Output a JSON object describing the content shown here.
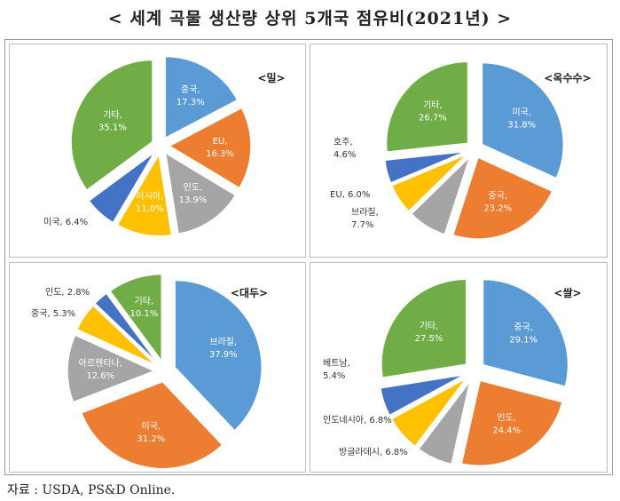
{
  "title": "< 세계 곡물 생산량 상위 5개국 점유비(2021년) >",
  "source": "자료 : USDA, PS&D Online.",
  "colors": {
    "blue": "#5b9bd5",
    "orange": "#ed7d31",
    "gray": "#a5a5a5",
    "yellow": "#ffc000",
    "darkblue": "#4472c4",
    "green": "#70ad47"
  },
  "chart_data": [
    {
      "type": "pie",
      "title": "<밀>",
      "slices": [
        {
          "name": "중국",
          "value": 17.3,
          "label": "17.3%",
          "color": "blue"
        },
        {
          "name": "EU",
          "value": 16.3,
          "label": "16.3%",
          "color": "orange"
        },
        {
          "name": "인도",
          "value": 13.9,
          "label": "13.9%",
          "color": "gray"
        },
        {
          "name": "러시아",
          "value": 11.0,
          "label": "11.0%",
          "color": "yellow"
        },
        {
          "name": "미국",
          "value": 6.4,
          "label": "6.4%",
          "color": "darkblue"
        },
        {
          "name": "기타",
          "value": 35.1,
          "label": "35.1%",
          "color": "green"
        }
      ]
    },
    {
      "type": "pie",
      "title": "<옥수수>",
      "slices": [
        {
          "name": "미국",
          "value": 31.8,
          "label": "31.8%",
          "color": "blue"
        },
        {
          "name": "중국",
          "value": 23.2,
          "label": "23.2%",
          "color": "orange"
        },
        {
          "name": "브라질",
          "value": 7.7,
          "label": "7.7%",
          "color": "gray"
        },
        {
          "name": "EU",
          "value": 6.0,
          "label": "6.0%",
          "color": "yellow"
        },
        {
          "name": "호주",
          "value": 4.6,
          "label": "4.6%",
          "color": "darkblue"
        },
        {
          "name": "기타",
          "value": 26.7,
          "label": "26.7%",
          "color": "green"
        }
      ]
    },
    {
      "type": "pie",
      "title": "<대두>",
      "slices": [
        {
          "name": "브라질",
          "value": 37.9,
          "label": "37.9%",
          "color": "blue"
        },
        {
          "name": "미국",
          "value": 31.2,
          "label": "31.2%",
          "color": "orange"
        },
        {
          "name": "아르헨티나",
          "value": 12.6,
          "label": "12.6%",
          "color": "gray"
        },
        {
          "name": "중국",
          "value": 5.3,
          "label": "5.3%",
          "color": "yellow"
        },
        {
          "name": "인도",
          "value": 2.8,
          "label": "2.8%",
          "color": "darkblue"
        },
        {
          "name": "기타",
          "value": 10.1,
          "label": "10.1%",
          "color": "green"
        }
      ]
    },
    {
      "type": "pie",
      "title": "<쌀>",
      "slices": [
        {
          "name": "중국",
          "value": 29.1,
          "label": "29.1%",
          "color": "blue"
        },
        {
          "name": "인도",
          "value": 24.4,
          "label": "24.4%",
          "color": "orange"
        },
        {
          "name": "방글라데시",
          "value": 6.8,
          "label": "6.8%",
          "color": "gray"
        },
        {
          "name": "인도네시아",
          "value": 6.8,
          "label": "6.8%",
          "color": "yellow"
        },
        {
          "name": "베트남",
          "value": 5.4,
          "label": "5.4%",
          "color": "darkblue"
        },
        {
          "name": "기타",
          "value": 27.5,
          "label": "27.5%",
          "color": "green"
        }
      ]
    }
  ]
}
